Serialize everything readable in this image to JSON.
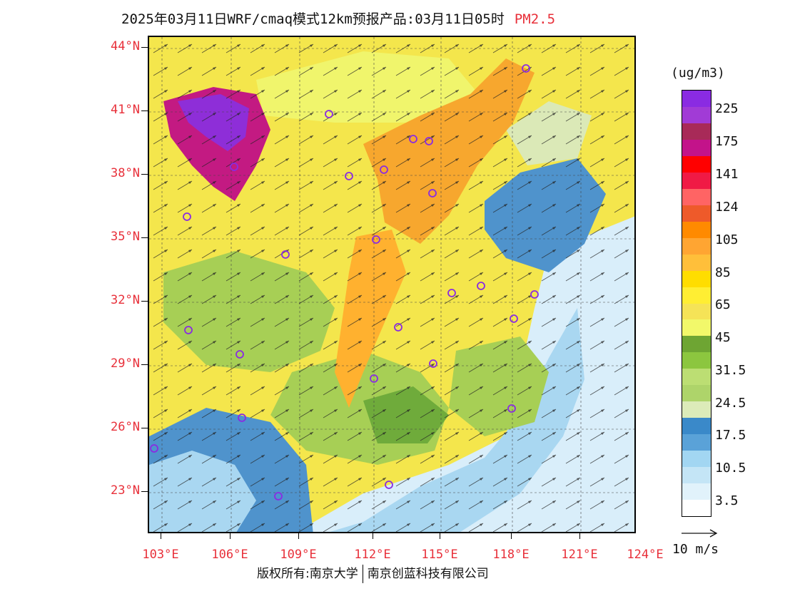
{
  "title": {
    "text": "2025年03月11日WRF/cmaq模式12km预报产品:03月11日05时",
    "pollutant": "PM2.5"
  },
  "map": {
    "latitude_labels": [
      "44°N",
      "41°N",
      "38°N",
      "35°N",
      "32°N",
      "29°N",
      "26°N",
      "23°N"
    ],
    "longitude_labels": [
      "103°E",
      "106°E",
      "109°E",
      "112°E",
      "115°E",
      "118°E",
      "121°E",
      "124°E"
    ],
    "region_colors": {
      "northwest_hotspot": "#8e2ed8",
      "hotspot_ring": "#c31a82",
      "north_plain": "#f7a72e",
      "central_corridor": "#ffb12f",
      "general": "#f4e64c",
      "light_yellow": "#f0f56c",
      "green": "#a7cf55",
      "dark_green": "#6fab3b",
      "pale_green": "#dbe9b7",
      "blue": "#4f93cc",
      "light_blue": "#a9d7f1",
      "pale_blue": "#d9eefa"
    }
  },
  "legend": {
    "unit": "(ug/m3)",
    "bins": [
      {
        "color": "#8a2be2"
      },
      {
        "color": "#a13bd6"
      },
      {
        "color": "#a82a58"
      },
      {
        "color": "#c3138a"
      },
      {
        "color": "#ff0000"
      },
      {
        "color": "#f01a45"
      },
      {
        "color": "#ff6464"
      },
      {
        "color": "#ee5a2a"
      },
      {
        "color": "#ff8a00"
      },
      {
        "color": "#ffa532"
      },
      {
        "color": "#ffbf3a"
      },
      {
        "color": "#ffdd00"
      },
      {
        "color": "#ffee33"
      },
      {
        "color": "#f5e357"
      },
      {
        "color": "#f2f86a"
      },
      {
        "color": "#6ea533"
      },
      {
        "color": "#8cc63f"
      },
      {
        "color": "#bcde73"
      },
      {
        "color": "#aed46a"
      },
      {
        "color": "#dcebb9"
      },
      {
        "color": "#3a89c9"
      },
      {
        "color": "#5aa2d8"
      },
      {
        "color": "#a2d6f2"
      },
      {
        "color": "#c4e5f6"
      },
      {
        "color": "#e1f2fb"
      },
      {
        "color": "#ffffff"
      }
    ],
    "labels": [
      "225",
      "175",
      "141",
      "124",
      "105",
      "85",
      "65",
      "45",
      "31.5",
      "24.5",
      "17.5",
      "10.5",
      "3.5"
    ]
  },
  "wind_reference": {
    "label": "10 m/s"
  },
  "footer": {
    "copyright": "版权所有:南京大学",
    "company": "南京创蓝科技有限公司"
  }
}
